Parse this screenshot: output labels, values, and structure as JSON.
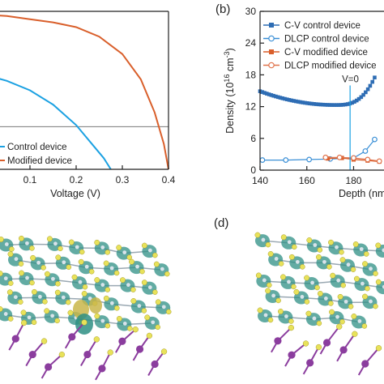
{
  "colors": {
    "control": "#1BA1E2",
    "modified": "#D95F2B",
    "control_cv": "#2E6DB4",
    "dlcp_control": "#3A8FD6",
    "reference": "#777777",
    "atom_yellow": "#E8E25A",
    "atom_purple": "#8B3D9E",
    "isosurface": "#2E8F84"
  },
  "panels": {
    "b": "(b)",
    "d": "(d)"
  },
  "chart_data": [
    {
      "type": "line",
      "panel": "a",
      "xlabel": "Voltage (V)",
      "ylabel": "",
      "xlim": [
        0.0,
        0.4
      ],
      "x_ticks": [
        0.1,
        0.2,
        0.3,
        0.4
      ],
      "x_tick_labels": [
        "0.1",
        "0.2",
        "0.3",
        "0.4"
      ],
      "legend_placement": "bottom-left",
      "reference_line_level": 0.27,
      "series": [
        {
          "name": "Control device",
          "color": "#1BA1E2",
          "x": [
            0.0,
            0.05,
            0.1,
            0.15,
            0.2,
            0.24,
            0.26,
            0.275
          ],
          "y": [
            0.6,
            0.56,
            0.5,
            0.41,
            0.28,
            0.14,
            0.07,
            0.0
          ]
        },
        {
          "name": "Modified device",
          "color": "#D95F2B",
          "x": [
            0.0,
            0.05,
            0.1,
            0.15,
            0.2,
            0.25,
            0.3,
            0.34,
            0.37,
            0.39,
            0.4
          ],
          "y": [
            0.98,
            0.97,
            0.95,
            0.93,
            0.9,
            0.84,
            0.73,
            0.57,
            0.36,
            0.16,
            0.0
          ]
        }
      ]
    },
    {
      "type": "scatter",
      "panel": "b",
      "xlabel": "Depth (nm",
      "ylabel": "Density (10",
      "ylabel_sup": "16",
      "ylabel_unit": " cm",
      "ylabel_unit_sup": "-3",
      "ylabel_close": ")",
      "xlim": [
        140,
        193
      ],
      "ylim": [
        0,
        30
      ],
      "x_ticks": [
        140,
        160,
        180
      ],
      "x_tick_labels": [
        "140",
        "160",
        "180"
      ],
      "y_ticks": [
        0,
        6,
        12,
        18,
        24,
        30
      ],
      "y_tick_labels": [
        "0",
        "6",
        "12",
        "18",
        "24",
        "30"
      ],
      "legend_placement": "top-right",
      "annotation": {
        "text": "V=0",
        "x": 178.5,
        "y_top": 16.0
      },
      "series": [
        {
          "name": "C-V control device",
          "color": "#2E6DB4",
          "marker": "square",
          "x_start": 140,
          "x_end": 189,
          "points": 52,
          "y_min": 12.3,
          "y_min_at": 172,
          "y_start": 14.9,
          "y_end": 17.5
        },
        {
          "name": "DLCP control device",
          "color": "#3A8FD6",
          "marker": "circle",
          "x": [
            141,
            151,
            161,
            170,
            180,
            185,
            189
          ],
          "y": [
            1.9,
            1.9,
            2.0,
            2.1,
            2.3,
            3.6,
            5.8
          ]
        },
        {
          "name": "C-V modified device",
          "color": "#D95F2B",
          "marker": "square",
          "x": [
            169,
            175,
            180,
            186,
            191
          ],
          "y": [
            2.2,
            2.3,
            2.0,
            1.8,
            1.6
          ]
        },
        {
          "name": "DLCP modified device",
          "color": "#E0724A",
          "marker": "circle",
          "x": [
            168,
            174,
            180,
            186,
            191
          ],
          "y": [
            2.4,
            2.4,
            2.3,
            2.0,
            1.7
          ]
        }
      ]
    }
  ]
}
